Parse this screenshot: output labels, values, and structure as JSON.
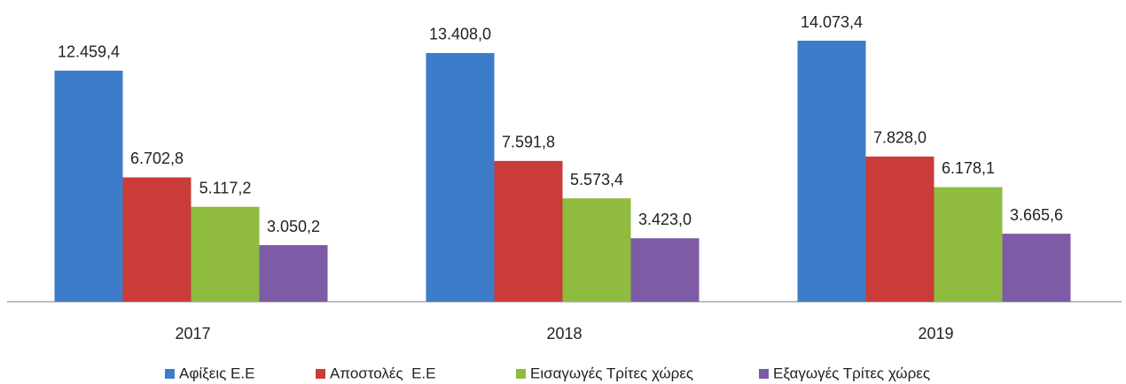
{
  "chart_data": {
    "type": "bar",
    "categories": [
      "2017",
      "2018",
      "2019"
    ],
    "series": [
      {
        "name": "Αφίξεις Ε.Ε",
        "color": "#3d7cc9",
        "values": [
          12459.4,
          13408.0,
          14073.4
        ],
        "value_labels": [
          "12.459,4",
          "13.408,0",
          "14.073,4"
        ]
      },
      {
        "name": "Αποστολές  Ε.Ε",
        "color": "#c93c3a",
        "values": [
          6702.8,
          7591.8,
          7828.0
        ],
        "value_labels": [
          "6.702,8",
          "7.591,8",
          "7.828,0"
        ]
      },
      {
        "name": "Εισαγωγές Τρίτες χώρες",
        "color": "#8fbc3f",
        "values": [
          5117.2,
          5573.4,
          6178.1
        ],
        "value_labels": [
          "5.117,2",
          "5.573,4",
          "6.178,1"
        ]
      },
      {
        "name": "Εξαγωγές Τρίτες χώρες",
        "color": "#7d5ba6",
        "values": [
          3050.2,
          3423.0,
          3665.6
        ],
        "value_labels": [
          "3.050,2",
          "3.423,0",
          "3.665,6"
        ]
      }
    ],
    "legend": "bottom"
  }
}
